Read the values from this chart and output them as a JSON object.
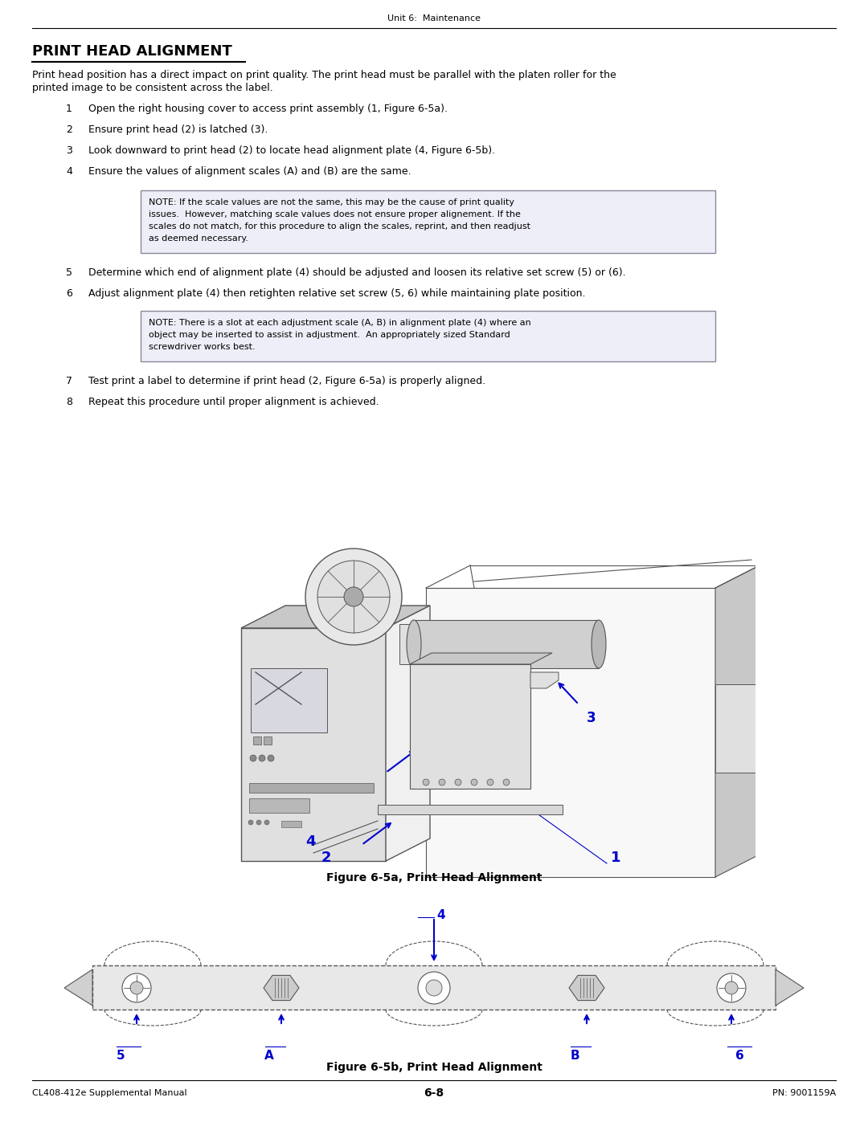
{
  "page_width": 10.8,
  "page_height": 13.97,
  "bg_color": "#ffffff",
  "header_text": "Unit 6:  Maintenance",
  "footer_left": "CL408-412e Supplemental Manual",
  "footer_center": "6-8",
  "footer_right": "PN: 9001159A",
  "title": "PRINT HEAD ALIGNMENT",
  "intro_line1": "Print head position has a direct impact on print quality. The print head must be parallel with the platen roller for the",
  "intro_line2": "printed image to be consistent across the label.",
  "steps": [
    "Open the right housing cover to access print assembly (1, Figure 6-5a).",
    "Ensure print head (2) is latched (3).",
    "Look downward to print head (2) to locate head alignment plate (4, Figure 6-5b).",
    "Ensure the values of alignment scales (A) and (B) are the same.",
    "Determine which end of alignment plate (4) should be adjusted and loosen its relative set screw (5) or (6).",
    "Adjust alignment plate (4) then retighten relative set screw (5, 6) while maintaining plate position.",
    "Test print a label to determine if print head (2, Figure 6-5a) is properly aligned.",
    "Repeat this procedure until proper alignment is achieved."
  ],
  "note1_lines": [
    "NOTE: If the scale values are not the same, this may be the cause of print quality",
    "issues.  However, matching scale values does not ensure proper alignement. If the",
    "scales do not match, for this procedure to align the scales, reprint, and then readjust",
    "as deemed necessary."
  ],
  "note2_lines": [
    "NOTE: There is a slot at each adjustment scale (A, B) in alignment plate (4) where an",
    "object may be inserted to assist in adjustment.  An appropriately sized Standard",
    "screwdriver works best."
  ],
  "fig1_caption": "Figure 6-5a, Print Head Alignment",
  "fig2_caption": "Figure 6-5b, Print Head Alignment",
  "note_box_fill": "#eeeef8",
  "note_border": "#888899",
  "text_color": "#000000",
  "blue": "#0000cc",
  "lc": "#666666",
  "body_font": "DejaVu Sans",
  "mono_font": "DejaVu Sans Mono",
  "body_size": 9.0,
  "small_size": 8.5
}
